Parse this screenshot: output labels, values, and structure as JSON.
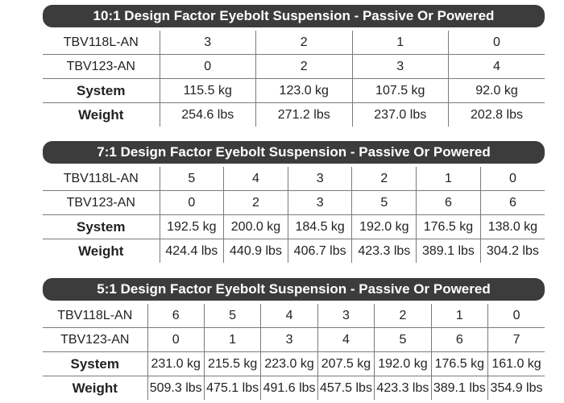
{
  "tables": [
    {
      "title": "10:1 Design Factor Eyebolt Suspension - Passive Or Powered",
      "rows": [
        {
          "label": "TBV118L-AN",
          "values": [
            "3",
            "2",
            "1",
            "0"
          ]
        },
        {
          "label": "TBV123-AN",
          "values": [
            "0",
            "2",
            "3",
            "4"
          ]
        },
        {
          "label": "System",
          "values": [
            "115.5 kg",
            "123.0 kg",
            "107.5 kg",
            "92.0 kg"
          ]
        },
        {
          "label": "Weight",
          "values": [
            "254.6 lbs",
            "271.2 lbs",
            "237.0 lbs",
            "202.8 lbs"
          ]
        }
      ]
    },
    {
      "title": "7:1 Design Factor Eyebolt Suspension - Passive Or Powered",
      "rows": [
        {
          "label": "TBV118L-AN",
          "values": [
            "5",
            "4",
            "3",
            "2",
            "1",
            "0"
          ]
        },
        {
          "label": "TBV123-AN",
          "values": [
            "0",
            "2",
            "3",
            "5",
            "6",
            "6"
          ]
        },
        {
          "label": "System",
          "values": [
            "192.5 kg",
            "200.0 kg",
            "184.5 kg",
            "192.0 kg",
            "176.5 kg",
            "138.0 kg"
          ]
        },
        {
          "label": "Weight",
          "values": [
            "424.4 lbs",
            "440.9 lbs",
            "406.7 lbs",
            "423.3 lbs",
            "389.1 lbs",
            "304.2 lbs"
          ]
        }
      ]
    },
    {
      "title": "5:1 Design Factor Eyebolt Suspension - Passive Or Powered",
      "rows": [
        {
          "label": "TBV118L-AN",
          "values": [
            "6",
            "5",
            "4",
            "3",
            "2",
            "1",
            "0"
          ]
        },
        {
          "label": "TBV123-AN",
          "values": [
            "0",
            "1",
            "3",
            "4",
            "5",
            "6",
            "7"
          ]
        },
        {
          "label": "System",
          "values": [
            "231.0 kg",
            "215.5 kg",
            "223.0 kg",
            "207.5 kg",
            "192.0 kg",
            "176.5 kg",
            "161.0 kg"
          ]
        },
        {
          "label": "Weight",
          "values": [
            "509.3 lbs",
            "475.1 lbs",
            "491.6 lbs",
            "457.5 lbs",
            "423.3 lbs",
            "389.1 lbs",
            "354.9 lbs"
          ]
        }
      ]
    }
  ]
}
